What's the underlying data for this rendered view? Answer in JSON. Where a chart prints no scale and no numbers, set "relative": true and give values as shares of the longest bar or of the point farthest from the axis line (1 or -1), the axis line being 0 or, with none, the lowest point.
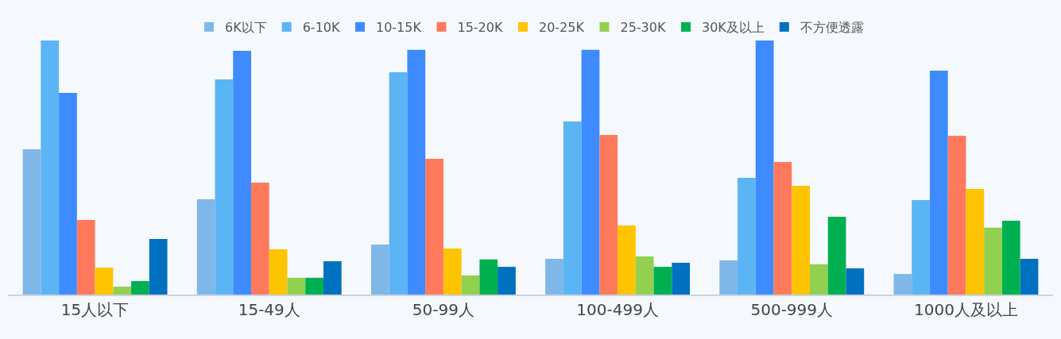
{
  "chart_data": {
    "type": "bar",
    "relative": true,
    "legend": "top",
    "grid": false,
    "categories": [
      "15人以下",
      "15-49人",
      "50-99人",
      "100-499人",
      "500-999人",
      "1000人及以上"
    ],
    "series": [
      {
        "name": "6K以下",
        "color": "#7fb8e8",
        "values": [
          0.572,
          0.375,
          0.197,
          0.141,
          0.134,
          0.081
        ]
      },
      {
        "name": "6-10K",
        "color": "#5bb5f5",
        "values": [
          1.0,
          0.847,
          0.875,
          0.681,
          0.459,
          0.372
        ]
      },
      {
        "name": "10-15K",
        "color": "#3d8bff",
        "values": [
          0.794,
          0.959,
          0.963,
          0.963,
          1.0,
          0.881
        ]
      },
      {
        "name": "15-20K",
        "color": "#ff7a5c",
        "values": [
          0.294,
          0.441,
          0.534,
          0.628,
          0.522,
          0.625
        ]
      },
      {
        "name": "20-25K",
        "color": "#ffc400",
        "values": [
          0.106,
          0.178,
          0.181,
          0.272,
          0.428,
          0.416
        ]
      },
      {
        "name": "25-30K",
        "color": "#92d050",
        "values": [
          0.031,
          0.066,
          0.075,
          0.15,
          0.119,
          0.263
        ]
      },
      {
        "name": "30K及以上",
        "color": "#00b050",
        "values": [
          0.053,
          0.066,
          0.138,
          0.109,
          0.306,
          0.291
        ]
      },
      {
        "name": "不方便透露",
        "color": "#0070c0",
        "values": [
          0.219,
          0.131,
          0.109,
          0.125,
          0.103,
          0.141
        ]
      }
    ]
  }
}
